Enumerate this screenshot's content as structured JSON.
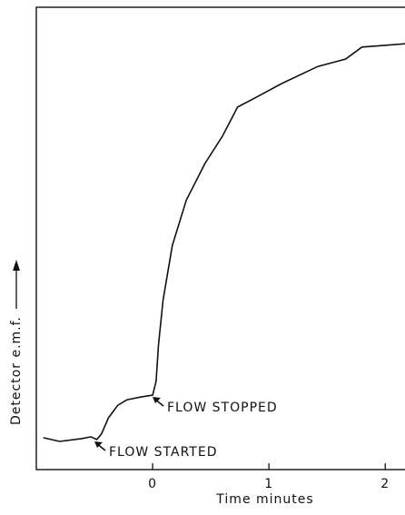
{
  "chart_data": {
    "type": "line",
    "xlabel": "Time minutes",
    "ylabel": "Detector e.m.f.",
    "annotations": [
      "FLOW STARTED",
      "FLOW STOPPED"
    ],
    "xlim": [
      -1,
      2.17
    ],
    "xticks": [
      0,
      1,
      2
    ],
    "ylim": [
      0,
      100
    ],
    "color": "#111111",
    "x": [
      -0.94,
      -0.8,
      -0.61,
      -0.53,
      -0.48,
      -0.44,
      -0.38,
      -0.3,
      -0.22,
      -0.1,
      0.0,
      0.03,
      0.05,
      0.09,
      0.17,
      0.29,
      0.45,
      0.6,
      0.73,
      0.88,
      1.11,
      1.42,
      1.66,
      1.8,
      1.97,
      2.17
    ],
    "values": [
      6.9,
      6.1,
      6.7,
      7.1,
      6.5,
      7.7,
      11.2,
      13.9,
      15.1,
      15.7,
      16.1,
      19.1,
      26.9,
      36.7,
      48.5,
      58.3,
      66.2,
      72.1,
      78.4,
      80.4,
      83.5,
      87.2,
      88.8,
      91.4,
      91.7,
      92.1
    ]
  }
}
